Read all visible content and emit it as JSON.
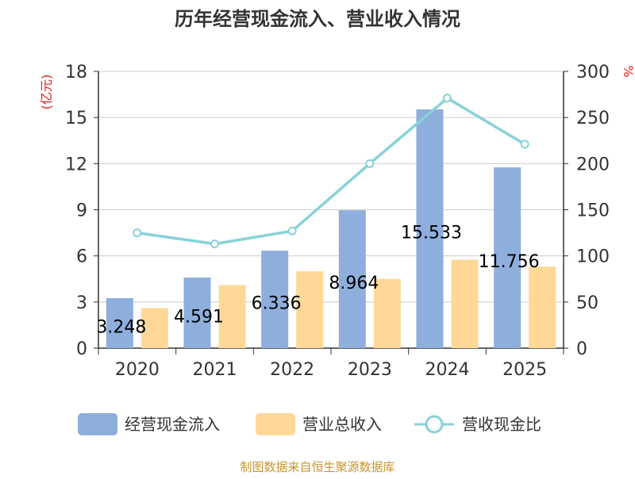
{
  "chart_data": {
    "type": "bar",
    "title": "历年经营现金流入、营业收入情况",
    "categories": [
      "2020",
      "2021",
      "2022",
      "2023",
      "2024",
      "2025"
    ],
    "left_axis": {
      "label": "(亿元)",
      "range": [
        0,
        18
      ],
      "ticks": [
        "0",
        "3",
        "6",
        "9",
        "12",
        "15",
        "18"
      ]
    },
    "right_axis": {
      "label": "%",
      "range": [
        0,
        300
      ],
      "ticks": [
        "0",
        "50",
        "100",
        "150",
        "200",
        "250",
        "300"
      ]
    },
    "series": [
      {
        "name": "经营现金流入",
        "kind": "bar",
        "axis": "left",
        "color": "#8eaedc",
        "values": [
          3.248,
          4.591,
          6.336,
          8.964,
          15.533,
          11.756
        ],
        "labels": [
          "3.248",
          "4.591",
          "6.336",
          "8.964",
          "15.533",
          "11.756"
        ]
      },
      {
        "name": "营业总收入",
        "kind": "bar",
        "axis": "left",
        "color": "#ffd898",
        "values": [
          2.6,
          4.1,
          5.0,
          4.5,
          5.75,
          5.3
        ]
      },
      {
        "name": "营收现金比",
        "kind": "line",
        "axis": "right",
        "color": "#88d2d8",
        "values": [
          125,
          113,
          127,
          200,
          271,
          221
        ]
      }
    ],
    "gridlines": true,
    "legend_position": "bottom"
  },
  "source": "制图数据来自恒生聚源数据库",
  "colors": {
    "title": "#333333",
    "axis_label": "#e02020",
    "grid": "#cccccc",
    "axis": "#333333",
    "source": "#c8952b"
  }
}
